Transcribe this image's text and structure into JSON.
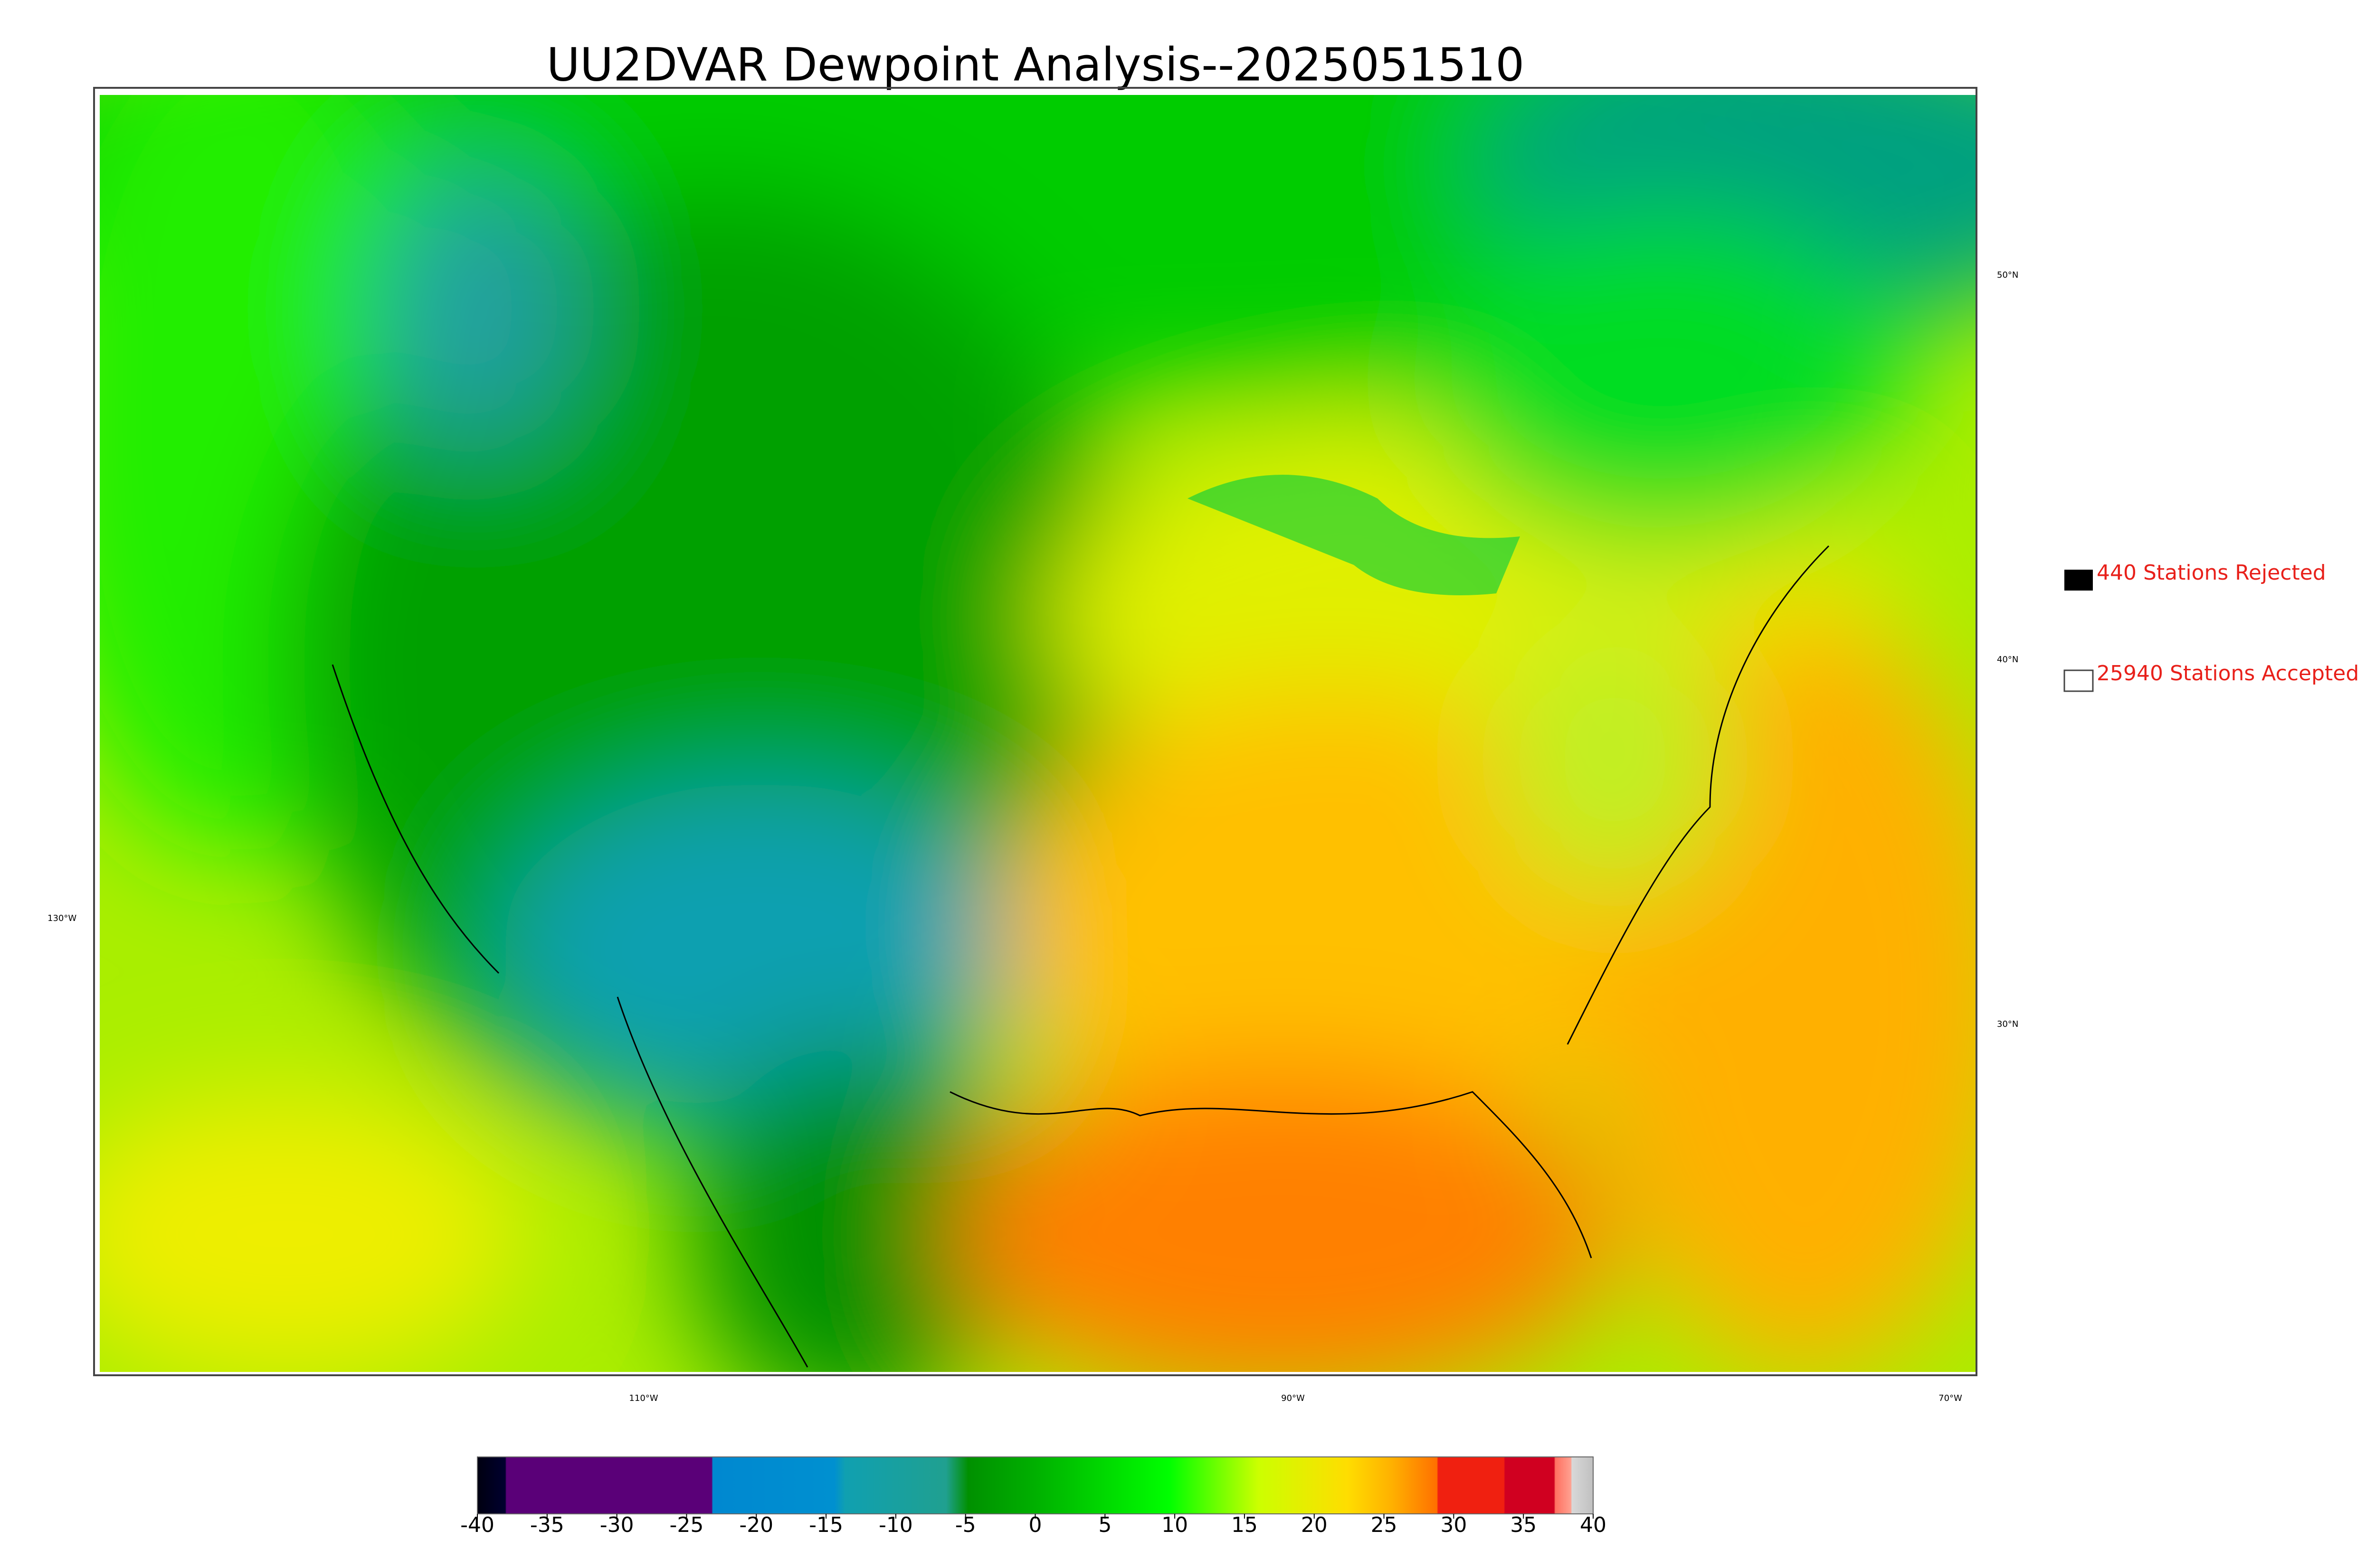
{
  "title": "UU2DVAR Dewpoint Analysis--2025051510",
  "legend": [
    "440 Stations Rejected",
    "25940 Stations Accepted"
  ],
  "graticule": {
    "lat": [
      "50°N",
      "40°N",
      "30°N"
    ],
    "lon": [
      "130°W",
      "110°W",
      "90°W",
      "70°W"
    ]
  },
  "colorbar": {
    "lim": [
      -40,
      40
    ],
    "ticks": [
      -40,
      -35,
      -30,
      -25,
      -20,
      -15,
      -10,
      -5,
      0,
      5,
      10,
      15,
      20,
      25,
      30,
      35,
      40
    ]
  }
}
